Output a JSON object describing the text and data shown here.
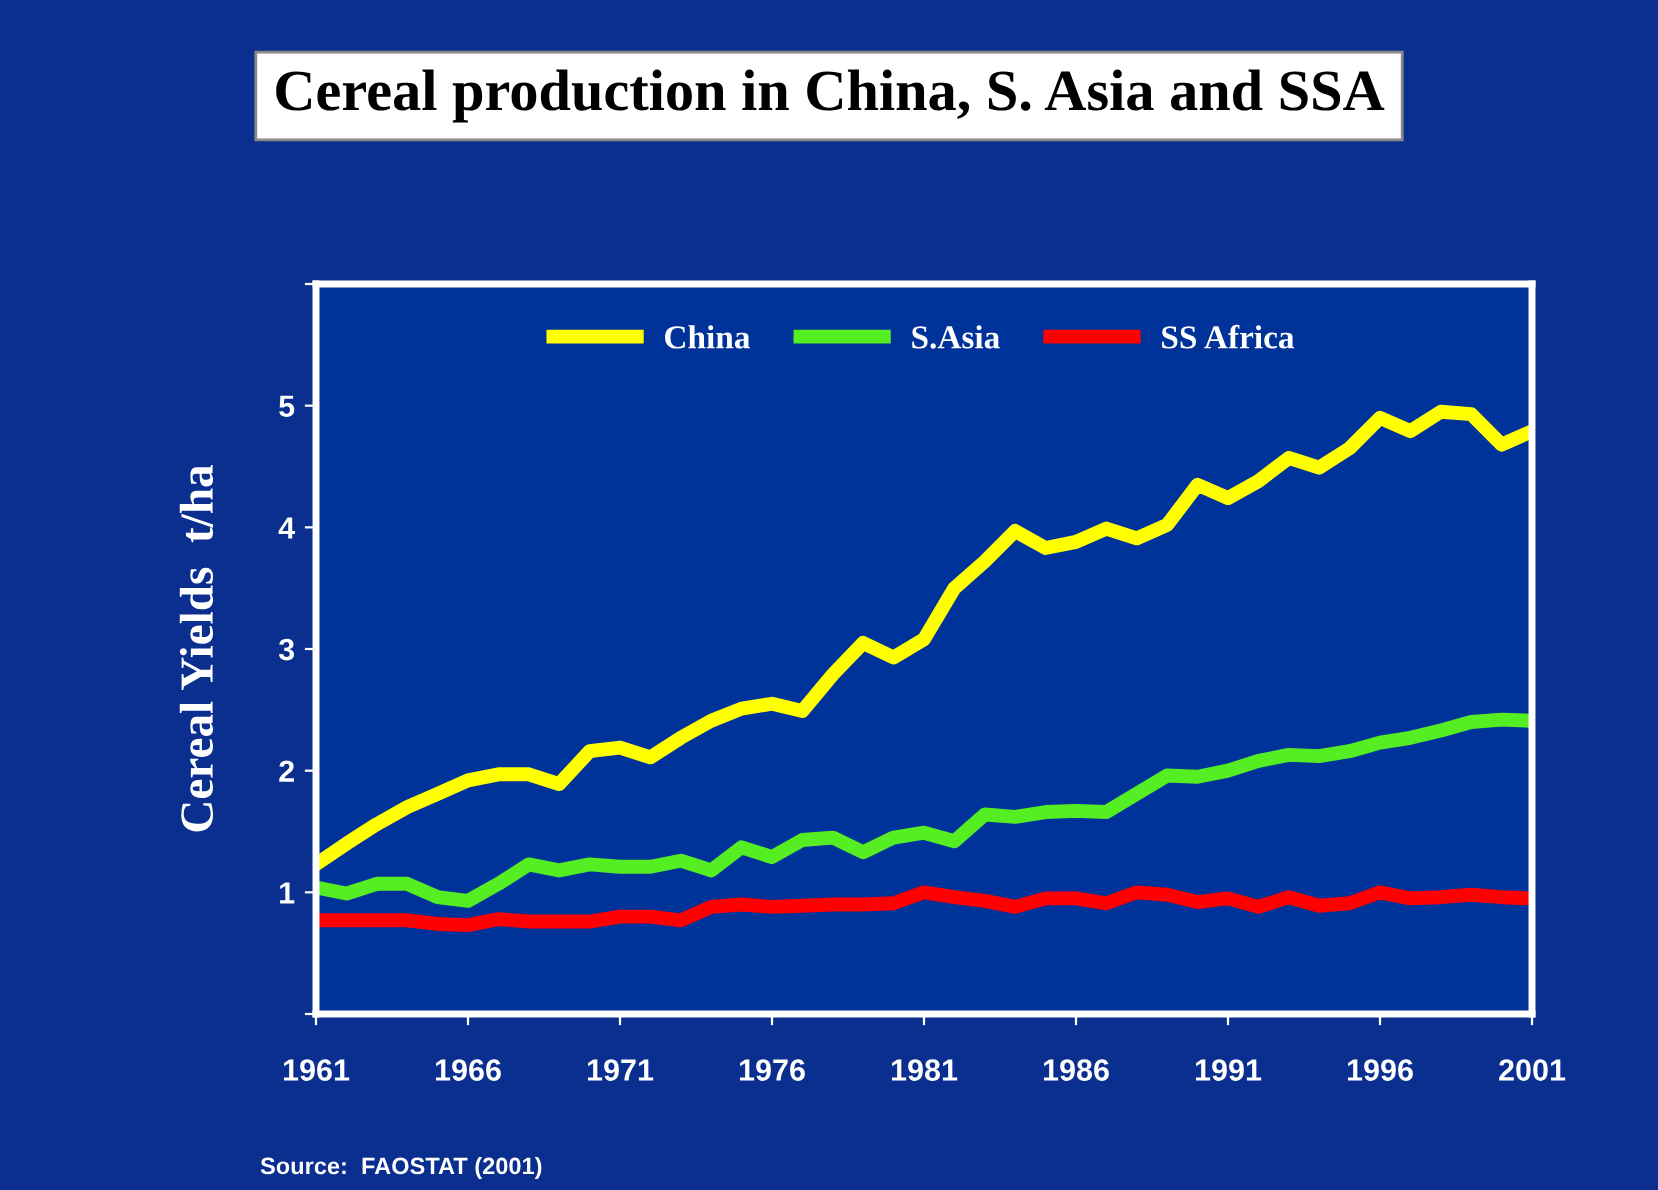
{
  "chart_data": {
    "type": "line",
    "title": "Cereal production in China, S. Asia and SSA",
    "ylabel": "Cereal Yields  t/ha",
    "x": [
      1961,
      1962,
      1963,
      1964,
      1965,
      1966,
      1967,
      1968,
      1969,
      1970,
      1971,
      1972,
      1973,
      1974,
      1975,
      1976,
      1977,
      1978,
      1979,
      1980,
      1981,
      1982,
      1983,
      1984,
      1985,
      1986,
      1987,
      1988,
      1989,
      1990,
      1991,
      1992,
      1993,
      1994,
      1995,
      1996,
      1997,
      1998,
      1999,
      2000,
      2001
    ],
    "series": [
      {
        "name": "China",
        "color": "#ffff00",
        "values": [
          1.23,
          1.4,
          1.56,
          1.7,
          1.81,
          1.92,
          1.97,
          1.97,
          1.89,
          2.16,
          2.19,
          2.11,
          2.27,
          2.41,
          2.51,
          2.55,
          2.49,
          2.79,
          3.05,
          2.93,
          3.08,
          3.5,
          3.72,
          3.97,
          3.83,
          3.88,
          3.99,
          3.91,
          4.02,
          4.35,
          4.24,
          4.38,
          4.57,
          4.49,
          4.65,
          4.9,
          4.79,
          4.95,
          4.93,
          4.68,
          4.79
        ]
      },
      {
        "name": "S.Asia",
        "color": "#55ee22",
        "values": [
          1.04,
          0.99,
          1.07,
          1.07,
          0.96,
          0.93,
          1.07,
          1.23,
          1.18,
          1.23,
          1.21,
          1.21,
          1.26,
          1.18,
          1.37,
          1.29,
          1.43,
          1.45,
          1.33,
          1.45,
          1.49,
          1.42,
          1.64,
          1.62,
          1.66,
          1.67,
          1.66,
          1.81,
          1.96,
          1.95,
          2.0,
          2.08,
          2.13,
          2.12,
          2.16,
          2.23,
          2.27,
          2.33,
          2.4,
          2.42,
          2.41
        ]
      },
      {
        "name": "SS Africa",
        "color": "#ff0000",
        "values": [
          0.77,
          0.77,
          0.77,
          0.77,
          0.74,
          0.73,
          0.78,
          0.76,
          0.76,
          0.76,
          0.8,
          0.8,
          0.77,
          0.88,
          0.9,
          0.88,
          0.89,
          0.9,
          0.9,
          0.91,
          1.0,
          0.96,
          0.93,
          0.88,
          0.95,
          0.95,
          0.91,
          1.0,
          0.98,
          0.92,
          0.95,
          0.88,
          0.96,
          0.89,
          0.91,
          1.0,
          0.95,
          0.96,
          0.98,
          0.96,
          0.95
        ]
      }
    ],
    "xlim": [
      1961,
      2001
    ],
    "xticks": [
      1961,
      1966,
      1971,
      1976,
      1981,
      1986,
      1991,
      1996,
      2001
    ],
    "ylim": [
      0,
      6
    ],
    "yticks": [
      {
        "value": 0,
        "label": null
      },
      1,
      2,
      3,
      4,
      5,
      {
        "value": 6,
        "label": null
      }
    ],
    "grid": false,
    "legend": "top",
    "marker": "none",
    "line_style": "solid",
    "annotations": [
      "Source:  FAOSTAT (2001)"
    ]
  }
}
